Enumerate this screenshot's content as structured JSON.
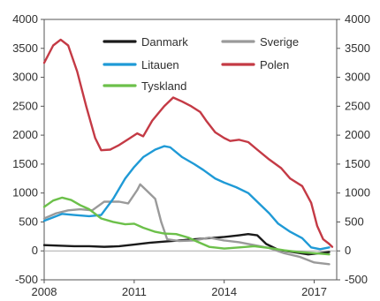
{
  "chart_data": {
    "type": "line",
    "x_ticks": [
      "2008",
      "2011",
      "2014",
      "2017"
    ],
    "y_ticks": [
      "4000",
      "3500",
      "3000",
      "2500",
      "2000",
      "1500",
      "1000",
      "500",
      "0",
      "-500"
    ],
    "xlim": [
      2008,
      2017.75
    ],
    "ylim": [
      -500,
      4000
    ],
    "grid": false,
    "legend_position": "top",
    "series": [
      {
        "name": "Danmark",
        "color": "#1a1a1a",
        "points": [
          [
            2008.0,
            100
          ],
          [
            2008.5,
            90
          ],
          [
            2009.0,
            80
          ],
          [
            2009.5,
            80
          ],
          [
            2010.0,
            70
          ],
          [
            2010.5,
            80
          ],
          [
            2011.0,
            110
          ],
          [
            2011.5,
            140
          ],
          [
            2012.0,
            160
          ],
          [
            2012.5,
            180
          ],
          [
            2013.0,
            200
          ],
          [
            2013.5,
            220
          ],
          [
            2014.0,
            240
          ],
          [
            2014.5,
            270
          ],
          [
            2014.8,
            290
          ],
          [
            2015.1,
            270
          ],
          [
            2015.4,
            120
          ],
          [
            2015.8,
            20
          ],
          [
            2016.3,
            -20
          ],
          [
            2016.8,
            -60
          ],
          [
            2017.2,
            -40
          ],
          [
            2017.5,
            -20
          ]
        ]
      },
      {
        "name": "Sverige",
        "color": "#9a9a9a",
        "points": [
          [
            2008.0,
            560
          ],
          [
            2008.4,
            650
          ],
          [
            2008.8,
            700
          ],
          [
            2009.2,
            720
          ],
          [
            2009.6,
            700
          ],
          [
            2010.0,
            850
          ],
          [
            2010.5,
            850
          ],
          [
            2010.8,
            820
          ],
          [
            2011.1,
            1050
          ],
          [
            2011.2,
            1150
          ],
          [
            2011.4,
            1050
          ],
          [
            2011.7,
            900
          ],
          [
            2011.9,
            500
          ],
          [
            2012.1,
            200
          ],
          [
            2012.5,
            170
          ],
          [
            2013.0,
            180
          ],
          [
            2013.5,
            230
          ],
          [
            2014.0,
            180
          ],
          [
            2014.5,
            150
          ],
          [
            2015.0,
            100
          ],
          [
            2015.5,
            50
          ],
          [
            2016.0,
            -40
          ],
          [
            2016.5,
            -100
          ],
          [
            2017.0,
            -200
          ],
          [
            2017.5,
            -230
          ]
        ]
      },
      {
        "name": "Litauen",
        "color": "#1f9ad6",
        "points": [
          [
            2008.0,
            520
          ],
          [
            2008.3,
            580
          ],
          [
            2008.6,
            640
          ],
          [
            2009.0,
            620
          ],
          [
            2009.5,
            600
          ],
          [
            2009.9,
            620
          ],
          [
            2010.3,
            900
          ],
          [
            2010.7,
            1250
          ],
          [
            2011.0,
            1450
          ],
          [
            2011.3,
            1620
          ],
          [
            2011.7,
            1750
          ],
          [
            2012.0,
            1810
          ],
          [
            2012.2,
            1790
          ],
          [
            2012.6,
            1620
          ],
          [
            2013.0,
            1500
          ],
          [
            2013.3,
            1400
          ],
          [
            2013.7,
            1250
          ],
          [
            2014.0,
            1180
          ],
          [
            2014.4,
            1100
          ],
          [
            2014.8,
            1000
          ],
          [
            2015.1,
            850
          ],
          [
            2015.5,
            650
          ],
          [
            2015.8,
            470
          ],
          [
            2016.2,
            330
          ],
          [
            2016.6,
            220
          ],
          [
            2016.9,
            60
          ],
          [
            2017.2,
            30
          ],
          [
            2017.5,
            60
          ]
        ]
      },
      {
        "name": "Polen",
        "color": "#c43a45",
        "points": [
          [
            2008.0,
            3250
          ],
          [
            2008.3,
            3550
          ],
          [
            2008.55,
            3650
          ],
          [
            2008.8,
            3550
          ],
          [
            2009.1,
            3100
          ],
          [
            2009.4,
            2500
          ],
          [
            2009.7,
            1950
          ],
          [
            2009.9,
            1740
          ],
          [
            2010.2,
            1750
          ],
          [
            2010.5,
            1830
          ],
          [
            2010.8,
            1930
          ],
          [
            2011.1,
            2030
          ],
          [
            2011.3,
            1980
          ],
          [
            2011.6,
            2250
          ],
          [
            2012.0,
            2500
          ],
          [
            2012.3,
            2650
          ],
          [
            2012.6,
            2580
          ],
          [
            2012.9,
            2500
          ],
          [
            2013.2,
            2400
          ],
          [
            2013.4,
            2250
          ],
          [
            2013.7,
            2050
          ],
          [
            2014.0,
            1950
          ],
          [
            2014.2,
            1900
          ],
          [
            2014.5,
            1920
          ],
          [
            2014.8,
            1880
          ],
          [
            2015.1,
            1750
          ],
          [
            2015.5,
            1580
          ],
          [
            2015.9,
            1430
          ],
          [
            2016.2,
            1250
          ],
          [
            2016.6,
            1120
          ],
          [
            2016.9,
            830
          ],
          [
            2017.1,
            430
          ],
          [
            2017.3,
            200
          ],
          [
            2017.5,
            120
          ],
          [
            2017.6,
            70
          ]
        ]
      },
      {
        "name": "Tyskland",
        "color": "#6cc04a",
        "points": [
          [
            2008.0,
            760
          ],
          [
            2008.3,
            870
          ],
          [
            2008.6,
            920
          ],
          [
            2008.9,
            880
          ],
          [
            2009.2,
            790
          ],
          [
            2009.5,
            720
          ],
          [
            2009.9,
            560
          ],
          [
            2010.3,
            500
          ],
          [
            2010.7,
            460
          ],
          [
            2011.0,
            470
          ],
          [
            2011.3,
            400
          ],
          [
            2011.7,
            330
          ],
          [
            2012.0,
            300
          ],
          [
            2012.4,
            290
          ],
          [
            2012.8,
            230
          ],
          [
            2013.1,
            160
          ],
          [
            2013.5,
            70
          ],
          [
            2014.0,
            40
          ],
          [
            2014.5,
            60
          ],
          [
            2015.0,
            80
          ],
          [
            2015.5,
            50
          ],
          [
            2016.0,
            10
          ],
          [
            2016.5,
            -20
          ],
          [
            2017.0,
            -40
          ],
          [
            2017.5,
            -60
          ]
        ]
      }
    ]
  }
}
